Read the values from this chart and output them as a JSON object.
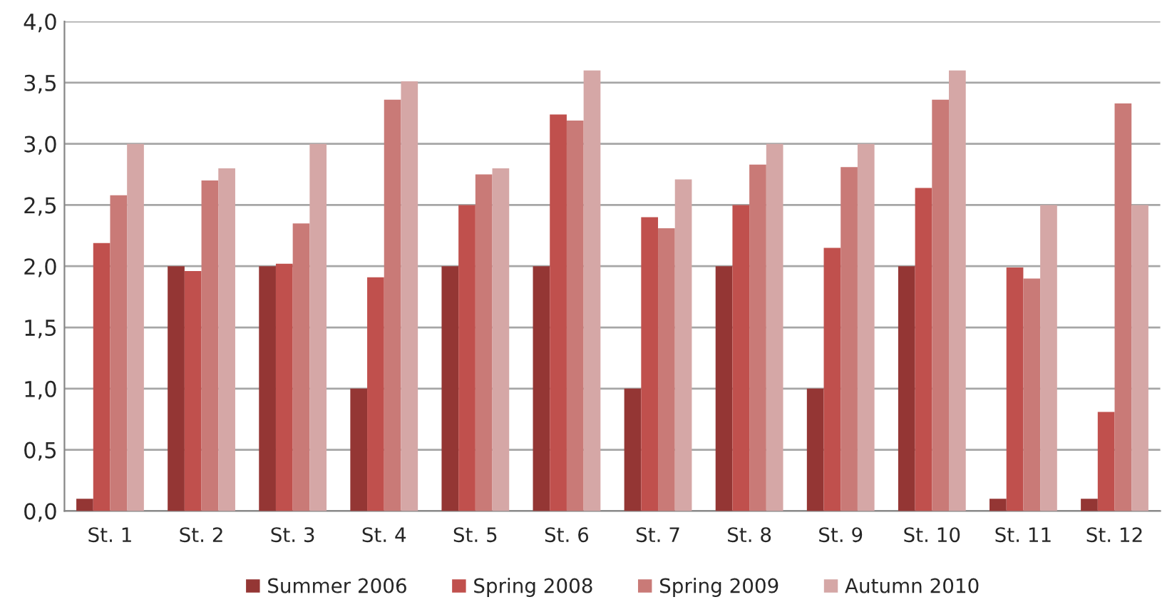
{
  "chart_data": {
    "type": "bar",
    "categories": [
      "St. 1",
      "St. 2",
      "St. 3",
      "St. 4",
      "St. 5",
      "St. 6",
      "St. 7",
      "St. 8",
      "St. 9",
      "St. 10",
      "St. 11",
      "St. 12"
    ],
    "series": [
      {
        "name": "Summer 2006",
        "color": "#943634",
        "values": [
          0.1,
          2.0,
          2.0,
          1.0,
          2.0,
          2.0,
          1.0,
          2.0,
          1.0,
          2.0,
          0.1,
          0.1
        ]
      },
      {
        "name": "Spring 2008",
        "color": "#c0504d",
        "values": [
          2.19,
          1.96,
          2.02,
          1.91,
          2.5,
          3.24,
          2.4,
          2.5,
          2.15,
          2.64,
          1.99,
          0.81
        ]
      },
      {
        "name": "Spring 2009",
        "color": "#c97a77",
        "values": [
          2.58,
          2.7,
          2.35,
          3.36,
          2.75,
          3.19,
          2.31,
          2.83,
          2.81,
          3.36,
          1.9,
          3.33
        ]
      },
      {
        "name": "Autumn 2010",
        "color": "#d5a7a6",
        "values": [
          3.0,
          2.8,
          3.0,
          3.51,
          2.8,
          3.6,
          2.71,
          3.0,
          3.0,
          3.6,
          2.5,
          2.5
        ]
      }
    ],
    "ylim": [
      0,
      4
    ],
    "yticks": [
      {
        "value": 0,
        "label": "0,0"
      },
      {
        "value": 0.5,
        "label": "0,5"
      },
      {
        "value": 1,
        "label": "1,0"
      },
      {
        "value": 1.5,
        "label": "1,5"
      },
      {
        "value": 2,
        "label": "2,0"
      },
      {
        "value": 2.5,
        "label": "2,5"
      },
      {
        "value": 3,
        "label": "3,0"
      },
      {
        "value": 3.5,
        "label": "3,5"
      },
      {
        "value": 4,
        "label": "4,0"
      }
    ],
    "grid": "y",
    "legend": "bottom"
  }
}
